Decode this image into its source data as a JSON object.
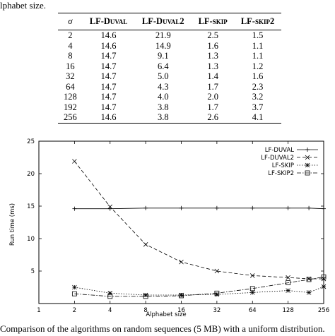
{
  "caption_top_fragment": "lphabet size.",
  "caption_bottom_fragment": "Comparison of the algorithms on random sequences (5 MB) with a uniform distribution.",
  "table": {
    "headers": [
      "σ",
      "LF-Duval",
      "LF-Duval2",
      "LF-skip",
      "LF-skip2"
    ],
    "rows": [
      [
        "2",
        "14.6",
        "21.9",
        "2.5",
        "1.5"
      ],
      [
        "4",
        "14.6",
        "14.9",
        "1.6",
        "1.1"
      ],
      [
        "8",
        "14.7",
        "9.1",
        "1.3",
        "1.1"
      ],
      [
        "16",
        "14.7",
        "6.4",
        "1.3",
        "1.2"
      ],
      [
        "32",
        "14.7",
        "5.0",
        "1.4",
        "1.6"
      ],
      [
        "64",
        "14.7",
        "4.3",
        "1.7",
        "2.3"
      ],
      [
        "128",
        "14.7",
        "4.0",
        "2.0",
        "3.2"
      ],
      [
        "192",
        "14.7",
        "3.8",
        "1.7",
        "3.7"
      ],
      [
        "256",
        "14.6",
        "3.8",
        "2.6",
        "4.1"
      ]
    ]
  },
  "chart_data": {
    "type": "line",
    "xlabel": "Alphabet size",
    "ylabel": "Run time (ms)",
    "xscale": "log2",
    "xlim": [
      1,
      256
    ],
    "ylim": [
      0,
      25
    ],
    "xticks": [
      1,
      2,
      4,
      8,
      16,
      32,
      64,
      128,
      256
    ],
    "xtick_labels": [
      "1",
      "2",
      "4",
      "8",
      "16",
      "32",
      "64",
      "128",
      "256"
    ],
    "yticks": [
      5,
      10,
      15,
      20,
      25
    ],
    "ytick_labels": [
      "5",
      "10",
      "15",
      "20",
      "25"
    ],
    "x": [
      2,
      4,
      8,
      16,
      32,
      64,
      128,
      192,
      256
    ],
    "legend_position": "top-right",
    "grid": false,
    "series": [
      {
        "name": "LF-DUVAL",
        "values": [
          14.6,
          14.6,
          14.7,
          14.7,
          14.7,
          14.7,
          14.7,
          14.7,
          14.6
        ],
        "marker": "+",
        "dash": "solid"
      },
      {
        "name": "LF-DUVAL2",
        "values": [
          21.9,
          14.9,
          9.1,
          6.4,
          5.0,
          4.3,
          4.0,
          3.8,
          3.8
        ],
        "marker": "x",
        "dash": "dashed"
      },
      {
        "name": "LF-SKIP",
        "values": [
          2.5,
          1.6,
          1.3,
          1.3,
          1.4,
          1.7,
          2.0,
          1.7,
          2.6
        ],
        "marker": "star",
        "dash": "dotted"
      },
      {
        "name": "LF-SKIP2",
        "values": [
          1.5,
          1.1,
          1.1,
          1.2,
          1.6,
          2.3,
          3.2,
          3.7,
          4.1
        ],
        "marker": "square",
        "dash": "dashdot"
      }
    ]
  }
}
